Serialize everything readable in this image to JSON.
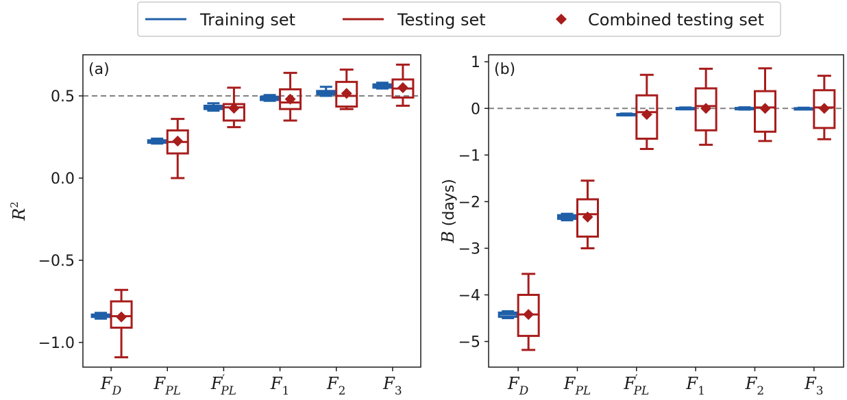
{
  "colors": {
    "training": "#1f5fa8",
    "testing": "#a81c1c",
    "reference_line": "#808080"
  },
  "legend": {
    "items": [
      {
        "label": "Training set",
        "marker": "line",
        "color": "#1f5fa8"
      },
      {
        "label": "Testing set",
        "marker": "line",
        "color": "#a81c1c"
      },
      {
        "label": "Combined testing set",
        "marker": "diamond",
        "color": "#a81c1c"
      }
    ]
  },
  "chart_data": [
    {
      "type": "boxplot",
      "panel_label": "(a)",
      "ylabel": "R^2",
      "ylim": [
        -1.15,
        0.75
      ],
      "yticks": [
        -1.0,
        -0.5,
        0.0,
        0.5
      ],
      "ytick_labels": [
        "−1.0",
        "−0.5",
        "0.0",
        "0.5"
      ],
      "reference_line_y": 0.5,
      "categories": [
        {
          "base": "F",
          "sub": "D",
          "prime": false
        },
        {
          "base": "F",
          "sub": "PL",
          "prime": false
        },
        {
          "base": "F",
          "sub": "PL",
          "prime": true
        },
        {
          "base": "F",
          "sub": "1",
          "prime": false
        },
        {
          "base": "F",
          "sub": "2",
          "prime": false
        },
        {
          "base": "F",
          "sub": "3",
          "prime": false
        }
      ],
      "training": [
        {
          "whislo": -0.855,
          "q1": -0.845,
          "med": -0.84,
          "q3": -0.83,
          "whishi": -0.82
        },
        {
          "whislo": 0.21,
          "q1": 0.215,
          "med": 0.222,
          "q3": 0.23,
          "whishi": 0.24
        },
        {
          "whislo": 0.41,
          "q1": 0.42,
          "med": 0.43,
          "q3": 0.44,
          "whishi": 0.455
        },
        {
          "whislo": 0.47,
          "q1": 0.475,
          "med": 0.485,
          "q3": 0.495,
          "whishi": 0.505
        },
        {
          "whislo": 0.5,
          "q1": 0.51,
          "med": 0.52,
          "q3": 0.53,
          "whishi": 0.555
        },
        {
          "whislo": 0.545,
          "q1": 0.55,
          "med": 0.56,
          "q3": 0.57,
          "whishi": 0.58
        }
      ],
      "testing": [
        {
          "whislo": -1.09,
          "q1": -0.91,
          "med": -0.84,
          "q3": -0.75,
          "whishi": -0.68
        },
        {
          "whislo": 0.0,
          "q1": 0.15,
          "med": 0.22,
          "q3": 0.29,
          "whishi": 0.36
        },
        {
          "whislo": 0.31,
          "q1": 0.35,
          "med": 0.43,
          "q3": 0.45,
          "whishi": 0.55
        },
        {
          "whislo": 0.35,
          "q1": 0.42,
          "med": 0.46,
          "q3": 0.54,
          "whishi": 0.64
        },
        {
          "whislo": 0.42,
          "q1": 0.435,
          "med": 0.5,
          "q3": 0.585,
          "whishi": 0.66
        },
        {
          "whislo": 0.44,
          "q1": 0.49,
          "med": 0.545,
          "q3": 0.6,
          "whishi": 0.69
        }
      ],
      "combined": [
        -0.845,
        0.225,
        0.425,
        0.48,
        0.515,
        0.55
      ]
    },
    {
      "type": "boxplot",
      "panel_label": "(b)",
      "ylabel": "B (days)",
      "ylim": [
        -5.55,
        1.15
      ],
      "yticks": [
        -5,
        -4,
        -3,
        -2,
        -1,
        0,
        1
      ],
      "ytick_labels": [
        "−5",
        "−4",
        "−3",
        "−2",
        "−1",
        "0",
        "1"
      ],
      "reference_line_y": 0,
      "categories": [
        {
          "base": "F",
          "sub": "D",
          "prime": false
        },
        {
          "base": "F",
          "sub": "PL",
          "prime": false
        },
        {
          "base": "F",
          "sub": "PL",
          "prime": true
        },
        {
          "base": "F",
          "sub": "1",
          "prime": false
        },
        {
          "base": "F",
          "sub": "2",
          "prime": false
        },
        {
          "base": "F",
          "sub": "3",
          "prime": false
        }
      ],
      "training": [
        {
          "whislo": -4.5,
          "q1": -4.47,
          "med": -4.42,
          "q3": -4.38,
          "whishi": -4.35
        },
        {
          "whislo": -2.4,
          "q1": -2.37,
          "med": -2.33,
          "q3": -2.29,
          "whishi": -2.26
        },
        {
          "whislo": -0.15,
          "q1": -0.14,
          "med": -0.13,
          "q3": -0.12,
          "whishi": -0.11
        },
        {
          "whislo": -0.02,
          "q1": -0.01,
          "med": 0.0,
          "q3": 0.01,
          "whishi": 0.02
        },
        {
          "whislo": -0.025,
          "q1": -0.01,
          "med": 0.0,
          "q3": 0.01,
          "whishi": 0.025
        },
        {
          "whislo": -0.015,
          "q1": -0.005,
          "med": 0.0,
          "q3": 0.005,
          "whishi": 0.015
        }
      ],
      "testing": [
        {
          "whislo": -5.18,
          "q1": -4.88,
          "med": -4.42,
          "q3": -4.0,
          "whishi": -3.55
        },
        {
          "whislo": -3.0,
          "q1": -2.75,
          "med": -2.27,
          "q3": -1.95,
          "whishi": -1.55
        },
        {
          "whislo": -0.87,
          "q1": -0.65,
          "med": -0.08,
          "q3": 0.28,
          "whishi": 0.72
        },
        {
          "whislo": -0.78,
          "q1": -0.47,
          "med": 0.05,
          "q3": 0.43,
          "whishi": 0.85
        },
        {
          "whislo": -0.7,
          "q1": -0.5,
          "med": 0.02,
          "q3": 0.37,
          "whishi": 0.86
        },
        {
          "whislo": -0.66,
          "q1": -0.42,
          "med": 0.02,
          "q3": 0.39,
          "whishi": 0.7
        }
      ],
      "combined": [
        -4.42,
        -2.33,
        -0.13,
        0.0,
        0.0,
        0.0
      ]
    }
  ]
}
